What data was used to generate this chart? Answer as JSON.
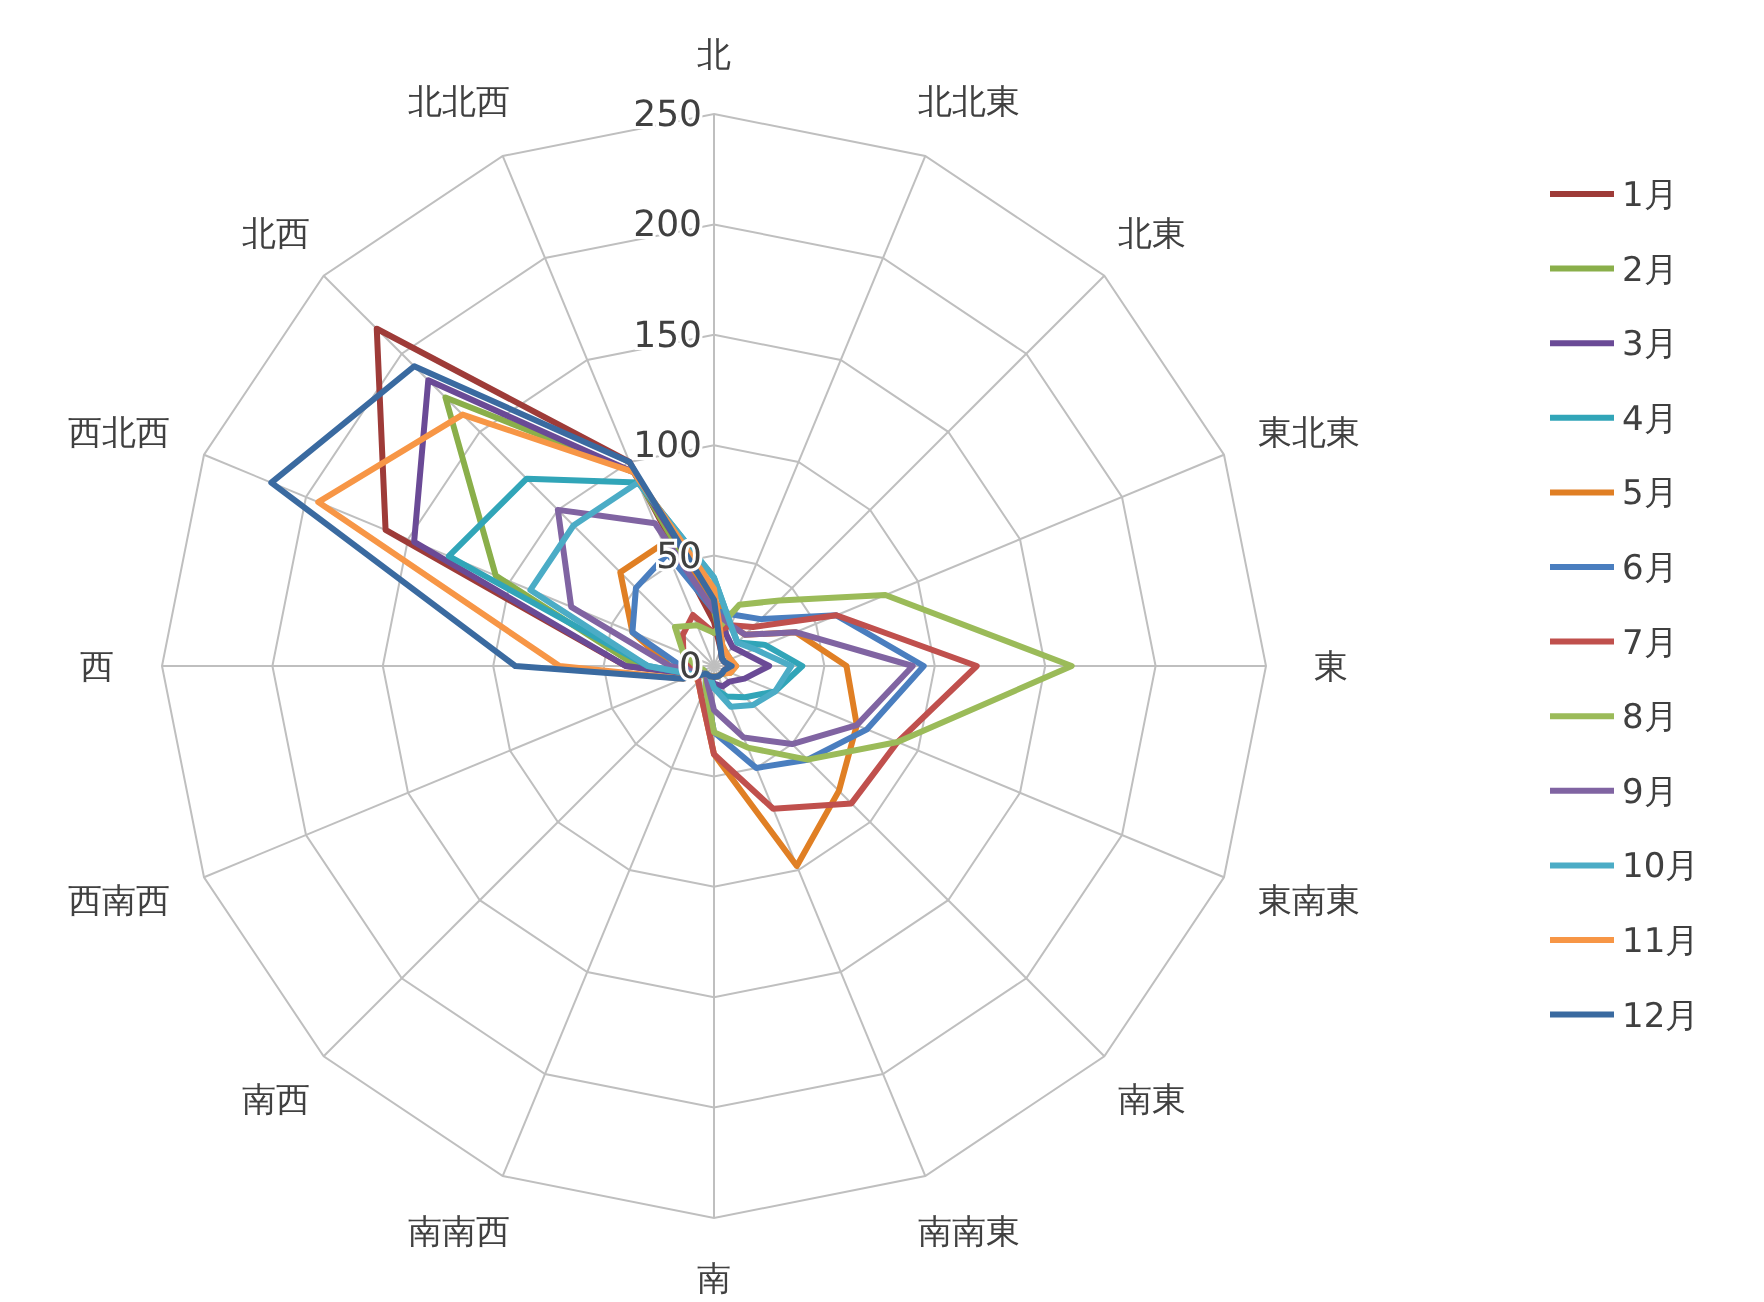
{
  "chart_data": {
    "type": "radar",
    "categories": [
      "北",
      "北北東",
      "北東",
      "東北東",
      "東",
      "東南東",
      "南東",
      "南南東",
      "南",
      "南南西",
      "南西",
      "西南西",
      "西",
      "西北西",
      "北西",
      "北北西"
    ],
    "ylim": [
      0,
      250
    ],
    "yticks": [
      0,
      50,
      100,
      150,
      200,
      250
    ],
    "legend": "right",
    "grid": true,
    "series": [
      {
        "name": "1月",
        "color": "#9e3b38",
        "values": [
          20,
          8,
          5,
          5,
          8,
          5,
          5,
          5,
          5,
          5,
          5,
          10,
          40,
          161,
          216,
          100
        ]
      },
      {
        "name": "2月",
        "color": "#8aaf4a",
        "values": [
          25,
          10,
          8,
          8,
          10,
          8,
          5,
          5,
          5,
          5,
          5,
          10,
          35,
          107,
          172,
          95
        ]
      },
      {
        "name": "3月",
        "color": "#6a4a96",
        "values": [
          30,
          15,
          12,
          15,
          25,
          15,
          10,
          10,
          8,
          5,
          5,
          10,
          40,
          147,
          183,
          95
        ]
      },
      {
        "name": "4月",
        "color": "#31a5b8",
        "values": [
          40,
          20,
          15,
          25,
          40,
          30,
          20,
          15,
          10,
          5,
          5,
          10,
          30,
          130,
          120,
          90
        ]
      },
      {
        "name": "5月",
        "color": "#e07f24",
        "values": [
          30,
          20,
          20,
          40,
          60,
          70,
          80,
          98,
          40,
          15,
          10,
          10,
          20,
          40,
          60,
          60
        ]
      },
      {
        "name": "6月",
        "color": "#4a7ebf",
        "values": [
          25,
          25,
          30,
          60,
          95,
          75,
          60,
          50,
          30,
          10,
          5,
          5,
          15,
          40,
          50,
          55
        ]
      },
      {
        "name": "7月",
        "color": "#c0504d",
        "values": [
          15,
          20,
          25,
          60,
          119,
          90,
          88,
          70,
          40,
          15,
          10,
          8,
          10,
          15,
          20,
          25
        ]
      },
      {
        "name": "8月",
        "color": "#9bbb59",
        "values": [
          15,
          30,
          42,
          84,
          162,
          90,
          60,
          40,
          30,
          10,
          5,
          5,
          8,
          15,
          25,
          20
        ]
      },
      {
        "name": "9月",
        "color": "#8064a2",
        "values": [
          25,
          20,
          20,
          40,
          90,
          70,
          50,
          35,
          20,
          8,
          5,
          8,
          20,
          70,
          100,
          70
        ]
      },
      {
        "name": "10月",
        "color": "#4bacc6",
        "values": [
          40,
          20,
          15,
          20,
          35,
          30,
          25,
          20,
          10,
          5,
          5,
          10,
          30,
          90,
          90,
          90
        ]
      },
      {
        "name": "11月",
        "color": "#f79646",
        "values": [
          35,
          10,
          8,
          8,
          10,
          8,
          5,
          5,
          5,
          5,
          5,
          15,
          70,
          194,
          161,
          95
        ]
      },
      {
        "name": "12月",
        "color": "#3a6aa0",
        "values": [
          30,
          8,
          5,
          5,
          8,
          5,
          5,
          5,
          5,
          5,
          5,
          15,
          90,
          217,
          192,
          100
        ]
      }
    ]
  }
}
